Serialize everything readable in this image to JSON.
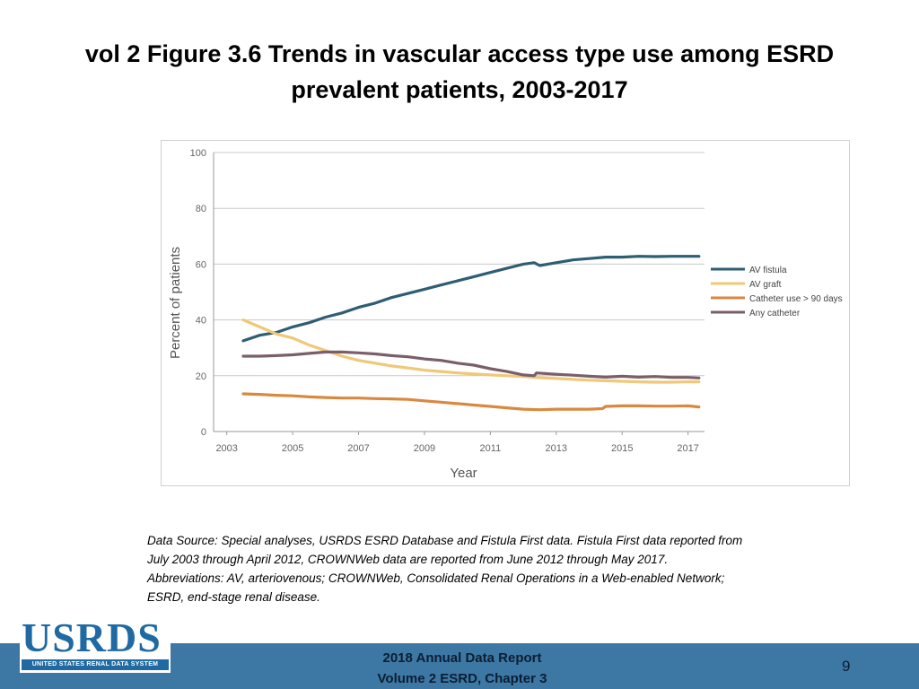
{
  "slide": {
    "title_line1": "vol 2 Figure 3.6 Trends in vascular access type use among ESRD",
    "title_line2": "prevalent patients, 2003-2017",
    "source_lines": [
      "Data Source: Special analyses, USRDS ESRD Database and Fistula First data. Fistula First data reported from",
      "July 2003 through April 2012, CROWNWeb data are reported from June 2012 through May 2017.",
      "Abbreviations: AV, arteriovenous; CROWNWeb, Consolidated Renal Operations in a Web-enabled Network;",
      "ESRD, end-stage renal disease."
    ],
    "footer_line1": "2018 Annual Data Report",
    "footer_line2": "Volume 2 ESRD, Chapter 3",
    "page_number": "9",
    "logo_text": "USRDS",
    "logo_subtext": "UNITED STATES RENAL DATA SYSTEM",
    "colors": {
      "footer": "#3d77a3",
      "logo": "#1f6aa3"
    }
  },
  "chart_data": {
    "type": "line",
    "title": "",
    "xlabel": "Year",
    "ylabel": "Percent of patients",
    "xlim": [
      2002.6,
      2017.5
    ],
    "ylim": [
      0,
      100
    ],
    "yticks": [
      0,
      20,
      40,
      60,
      80,
      100
    ],
    "xticks": [
      2003,
      2005,
      2007,
      2009,
      2011,
      2013,
      2015,
      2017
    ],
    "grid": "horizontal",
    "legend_position": "right",
    "series": [
      {
        "name": "AV fistula",
        "color": "#2e5e73",
        "x": [
          2003.5,
          2004.0,
          2004.5,
          2005.0,
          2005.5,
          2006.0,
          2006.5,
          2007.0,
          2007.5,
          2008.0,
          2008.5,
          2009.0,
          2009.5,
          2010.0,
          2010.5,
          2011.0,
          2011.5,
          2012.0,
          2012.33,
          2012.5,
          2013.0,
          2013.5,
          2014.0,
          2014.5,
          2015.0,
          2015.5,
          2016.0,
          2016.5,
          2017.0,
          2017.33
        ],
        "values": [
          32.5,
          34.5,
          35.5,
          37.5,
          39.0,
          41.0,
          42.5,
          44.5,
          46.0,
          48.0,
          49.5,
          51.0,
          52.5,
          54.0,
          55.5,
          57.0,
          58.5,
          60.0,
          60.5,
          59.5,
          60.5,
          61.5,
          62.0,
          62.5,
          62.5,
          62.8,
          62.7,
          62.8,
          62.8,
          62.8
        ]
      },
      {
        "name": "AV graft",
        "color": "#efc878",
        "x": [
          2003.5,
          2004.0,
          2004.5,
          2005.0,
          2005.5,
          2006.0,
          2006.5,
          2007.0,
          2007.5,
          2008.0,
          2008.5,
          2009.0,
          2009.5,
          2010.0,
          2010.5,
          2011.0,
          2011.5,
          2012.0,
          2012.5,
          2013.0,
          2013.5,
          2014.0,
          2014.5,
          2015.0,
          2015.5,
          2016.0,
          2016.5,
          2017.0,
          2017.33
        ],
        "values": [
          40.0,
          37.5,
          35.0,
          33.5,
          31.0,
          29.0,
          27.0,
          25.5,
          24.5,
          23.5,
          22.8,
          22.0,
          21.5,
          21.0,
          20.6,
          20.3,
          20.0,
          19.7,
          19.3,
          19.0,
          18.7,
          18.4,
          18.2,
          18.0,
          17.8,
          17.7,
          17.7,
          17.8,
          17.8
        ]
      },
      {
        "name": "Catheter use > 90 days",
        "color": "#d9893f",
        "x": [
          2003.5,
          2004.0,
          2004.5,
          2005.0,
          2005.5,
          2006.0,
          2006.5,
          2007.0,
          2007.5,
          2008.0,
          2008.5,
          2009.0,
          2009.5,
          2010.0,
          2010.5,
          2011.0,
          2011.5,
          2012.0,
          2012.5,
          2013.0,
          2013.5,
          2014.0,
          2014.4,
          2014.5,
          2015.0,
          2015.5,
          2016.0,
          2016.5,
          2017.0,
          2017.33
        ],
        "values": [
          13.5,
          13.3,
          13.0,
          12.8,
          12.4,
          12.2,
          12.0,
          12.0,
          11.8,
          11.7,
          11.5,
          11.0,
          10.5,
          10.0,
          9.5,
          9.0,
          8.5,
          8.0,
          7.8,
          8.0,
          8.0,
          8.0,
          8.2,
          9.0,
          9.2,
          9.2,
          9.1,
          9.1,
          9.2,
          8.8
        ]
      },
      {
        "name": "Any catheter",
        "color": "#7a5f6b",
        "x": [
          2003.5,
          2004.0,
          2004.5,
          2005.0,
          2005.5,
          2006.0,
          2006.5,
          2007.0,
          2007.5,
          2008.0,
          2008.5,
          2009.0,
          2009.5,
          2010.0,
          2010.5,
          2011.0,
          2011.5,
          2012.0,
          2012.33,
          2012.4,
          2013.0,
          2013.5,
          2014.0,
          2014.5,
          2015.0,
          2015.5,
          2016.0,
          2016.5,
          2017.0,
          2017.33
        ],
        "values": [
          27.0,
          27.0,
          27.2,
          27.5,
          28.0,
          28.5,
          28.5,
          28.2,
          27.8,
          27.2,
          26.8,
          26.0,
          25.5,
          24.5,
          23.8,
          22.5,
          21.5,
          20.3,
          20.0,
          21.0,
          20.5,
          20.2,
          19.8,
          19.5,
          19.8,
          19.5,
          19.7,
          19.4,
          19.4,
          19.2
        ]
      }
    ]
  }
}
